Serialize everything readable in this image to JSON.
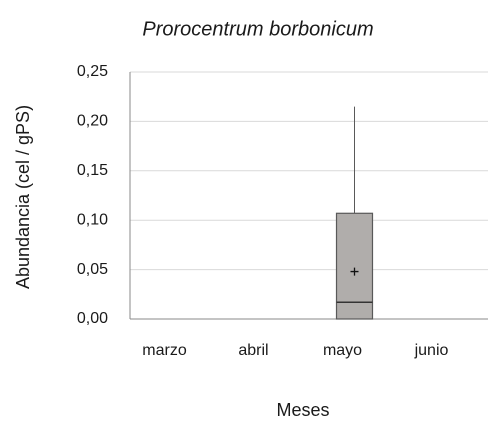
{
  "chart_data": {
    "type": "box",
    "title": "Prorocentrum borbonicum",
    "x_label": "Meses",
    "y_label": "Abundancia (cel / gPS)",
    "categories": [
      "marzo",
      "abril",
      "mayo",
      "junio"
    ],
    "min": [
      null,
      null,
      0,
      null
    ],
    "q1": [
      null,
      null,
      0,
      null
    ],
    "median": [
      null,
      null,
      0.017,
      null
    ],
    "q3": [
      null,
      null,
      0.107,
      null
    ],
    "max": [
      null,
      null,
      0.215,
      null
    ],
    "mean": [
      null,
      null,
      0.048,
      null
    ],
    "color": "#b0adab",
    "ylim": [
      0,
      0.25
    ],
    "yticks": [
      {
        "value": 0,
        "label": "0,00"
      },
      {
        "value": 0.05,
        "label": "0,05"
      },
      {
        "value": 0.1,
        "label": "0,10"
      },
      {
        "value": 0.15,
        "label": "0,15"
      },
      {
        "value": 0.2,
        "label": "0,20"
      },
      {
        "value": 0.25,
        "label": "0,25"
      }
    ],
    "grid": true
  }
}
